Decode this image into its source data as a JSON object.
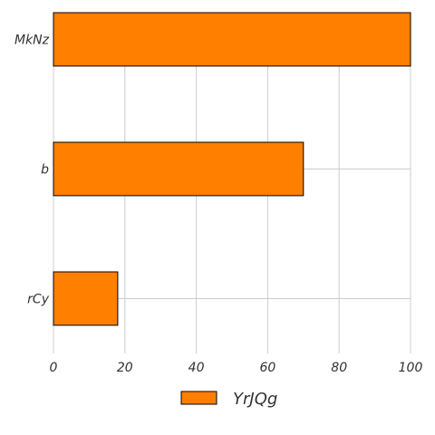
{
  "chart_data": {
    "type": "bar",
    "orientation": "horizontal",
    "categories": [
      "MkNz",
      "b",
      "rCy"
    ],
    "series": [
      {
        "name": "YrJQg",
        "values": [
          100,
          70,
          18
        ],
        "color": "#ff7f00"
      }
    ],
    "xlim": [
      0,
      100
    ],
    "xticks": [
      0,
      20,
      40,
      60,
      80,
      100
    ],
    "grid": true,
    "legend": "bottom-center",
    "title": "",
    "xlabel": "",
    "ylabel": ""
  }
}
